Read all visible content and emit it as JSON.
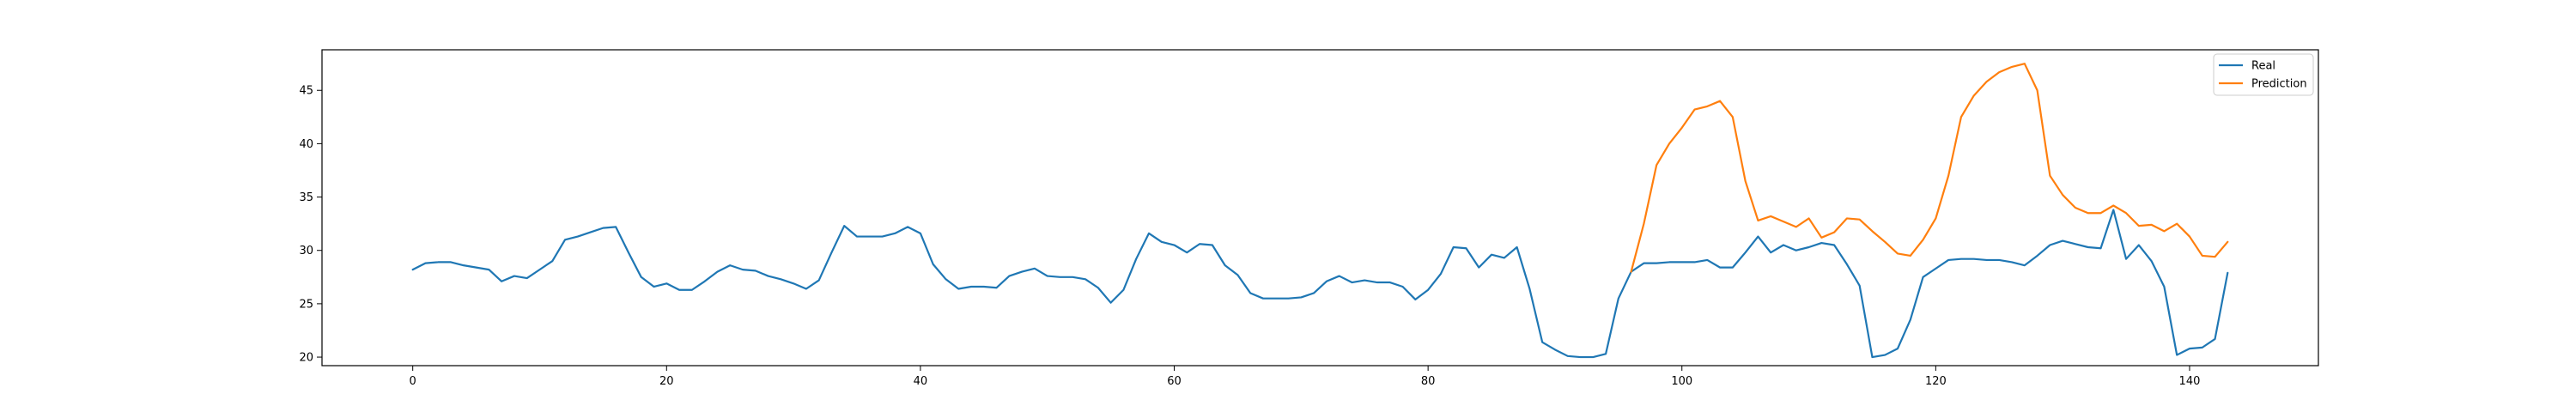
{
  "chart_data": {
    "type": "line",
    "title": "",
    "xlabel": "",
    "ylabel": "",
    "xlim": [
      -7.15,
      150.15
    ],
    "ylim": [
      19.2,
      48.8
    ],
    "xticks": [
      0,
      20,
      40,
      60,
      80,
      100,
      120,
      140
    ],
    "yticks": [
      20,
      25,
      30,
      35,
      40,
      45
    ],
    "grid": false,
    "legend_position": "top-right",
    "series": [
      {
        "name": "Real",
        "color": "#1f77b4",
        "x_start": 0,
        "values": [
          28.2,
          28.8,
          28.9,
          28.9,
          28.6,
          28.4,
          28.2,
          27.1,
          27.6,
          27.4,
          28.2,
          29.0,
          31.0,
          31.3,
          31.7,
          32.1,
          32.2,
          29.8,
          27.5,
          26.6,
          26.9,
          26.3,
          26.3,
          27.1,
          28.0,
          28.6,
          28.2,
          28.1,
          27.6,
          27.3,
          26.9,
          26.4,
          27.2,
          29.8,
          32.3,
          31.3,
          31.3,
          31.3,
          31.6,
          32.2,
          31.6,
          28.7,
          27.3,
          26.4,
          26.6,
          26.6,
          26.5,
          27.6,
          28.0,
          28.3,
          27.6,
          27.5,
          27.5,
          27.3,
          26.5,
          25.1,
          26.3,
          29.2,
          31.6,
          30.8,
          30.5,
          29.8,
          30.6,
          30.5,
          28.6,
          27.7,
          26.0,
          25.5,
          25.5,
          25.5,
          25.6,
          26.0,
          27.1,
          27.6,
          27.0,
          27.2,
          27.0,
          27.0,
          26.6,
          25.4,
          26.3,
          27.8,
          30.3,
          30.2,
          28.4,
          29.6,
          29.3,
          30.3,
          26.4,
          21.4,
          20.7,
          20.1,
          20.0,
          20.0,
          20.3,
          25.5,
          28.0,
          28.8,
          28.8,
          28.9,
          28.9,
          28.9,
          29.1,
          28.4,
          28.4,
          29.8,
          31.3,
          29.8,
          30.5,
          30.0,
          30.3,
          30.7,
          30.5,
          28.7,
          26.7,
          20.0,
          20.2,
          20.8,
          23.5,
          27.5,
          28.3,
          29.1,
          29.2,
          29.2,
          29.1,
          29.1,
          28.9,
          28.6,
          29.5,
          30.5,
          30.9,
          30.6,
          30.3,
          30.2,
          33.8,
          29.2,
          30.5,
          29.0,
          26.6,
          20.2,
          20.8,
          20.9,
          21.7,
          27.9
        ]
      },
      {
        "name": "Prediction",
        "color": "#ff7f0e",
        "x_start": 96,
        "values": [
          28.0,
          32.5,
          38.0,
          40.0,
          41.5,
          43.2,
          43.5,
          44.0,
          42.5,
          36.5,
          32.8,
          33.2,
          32.7,
          32.2,
          33.0,
          31.2,
          31.7,
          33.0,
          32.9,
          31.8,
          30.8,
          29.7,
          29.5,
          31.0,
          33.0,
          37.0,
          42.5,
          44.5,
          45.8,
          46.7,
          47.2,
          47.5,
          45.0,
          37.0,
          35.2,
          34.0,
          33.5,
          33.5,
          34.2,
          33.5,
          32.3,
          32.4,
          31.8,
          32.5,
          31.3,
          29.5,
          29.4,
          30.8
        ]
      }
    ]
  }
}
